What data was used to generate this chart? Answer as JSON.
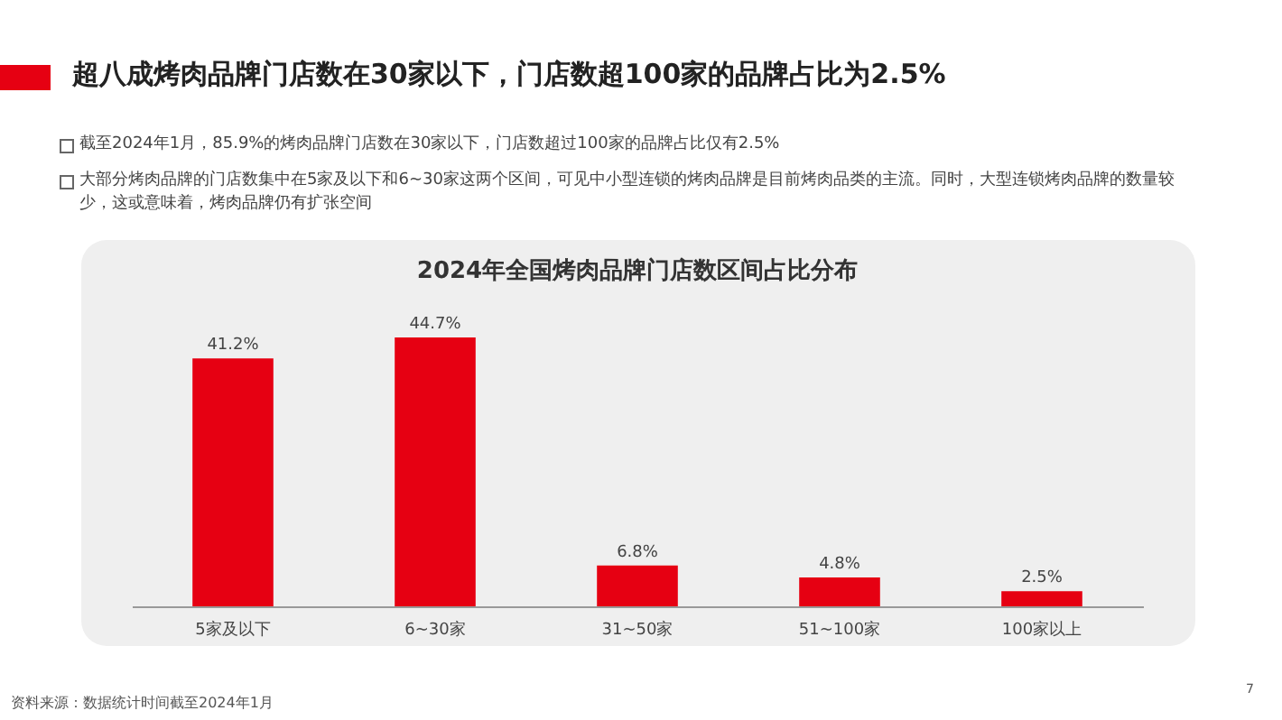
{
  "chart_data": {
    "type": "bar",
    "title": "2024年全国烤肉品牌门店数区间占比分布",
    "subtitle": "超八成烤肉品牌门店数在30家以下，门店数超100家的品牌占比为2.5%",
    "annotations": [
      "截至2024年1月，85.9%的烤肉品牌门店数在30家以下，门店数超过100家的品牌占比仅有2.5%",
      "大部分烤肉品牌的门店数集中在5家及以下和6~30家这两个区间，可见中小型连锁的烤肉品牌是目前烤肉品类的主流。同时，大型连锁烤肉品牌的数量较少，这或意味着，烤肉品牌仍有扩张空间",
      "资料来源：数据统计时间截至2024年1月",
      "7"
    ],
    "categories": [
      "5家及以下",
      "6~30家",
      "31~50家",
      "51~100家",
      "100家以上"
    ],
    "values": [
      41.2,
      44.7,
      6.8,
      4.8,
      2.5
    ],
    "value_labels": [
      "41.2%",
      "44.7%",
      "6.8%",
      "4.8%",
      "2.5%"
    ],
    "color": "#e60012"
  }
}
